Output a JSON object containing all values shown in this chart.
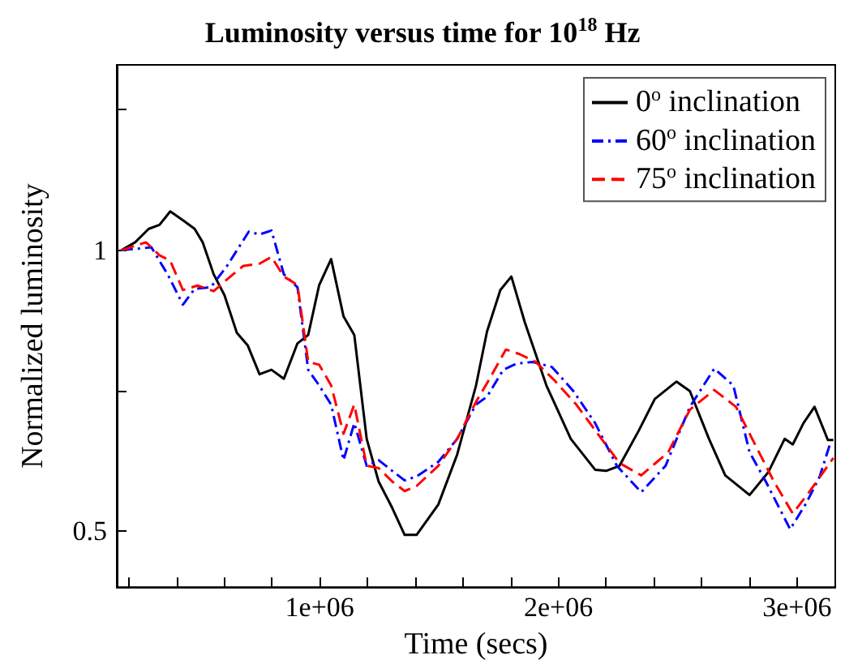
{
  "chart_data": {
    "type": "line",
    "title": "Luminosity versus time for 10$^{18}$ Hz",
    "xlabel": "Time (secs)",
    "ylabel": "Normalized luminosity",
    "xlim": [
      150000,
      3160000
    ],
    "ylim": [
      0.4,
      1.33
    ],
    "xticks": [
      {
        "value": 200000,
        "label": null
      },
      {
        "value": 400000,
        "label": null
      },
      {
        "value": 600000,
        "label": null
      },
      {
        "value": 800000,
        "label": null
      },
      {
        "value": 1000000,
        "label": "1e+06"
      },
      {
        "value": 1200000,
        "label": null
      },
      {
        "value": 1400000,
        "label": null
      },
      {
        "value": 1600000,
        "label": null
      },
      {
        "value": 1800000,
        "label": null
      },
      {
        "value": 2000000,
        "label": "2e+06"
      },
      {
        "value": 2200000,
        "label": null
      },
      {
        "value": 2400000,
        "label": null
      },
      {
        "value": 2600000,
        "label": null
      },
      {
        "value": 2800000,
        "label": null
      },
      {
        "value": 3000000,
        "label": "3e+06"
      }
    ],
    "yticks": [
      {
        "value": 0.5,
        "label": "0.5"
      },
      {
        "value": 0.75,
        "label": null
      },
      {
        "value": 1,
        "label": "1"
      },
      {
        "value": 1.25,
        "label": null
      }
    ],
    "grid": false,
    "legend": "top right",
    "marker": "none",
    "series": [
      {
        "name": "0$^{o}$ inclination",
        "color": "#000000",
        "line_style": "solid",
        "x": [
          170000,
          227000,
          284000,
          329000,
          374000,
          431000,
          476000,
          510000,
          556000,
          601000,
          653000,
          699000,
          748000,
          798000,
          850000,
          907000,
          952000,
          998000,
          1048000,
          1100000,
          1145000,
          1197000,
          1247000,
          1304000,
          1356000,
          1406000,
          1497000,
          1576000,
          1655000,
          1701000,
          1757000,
          1803000,
          1859000,
          1950000,
          2052000,
          2154000,
          2200000,
          2256000,
          2336000,
          2404000,
          2495000,
          2551000,
          2631000,
          2699000,
          2801000,
          2880000,
          2948000,
          2982000,
          3027000,
          3073000,
          3129000,
          3152000
        ],
        "values": [
          1.0,
          1.014,
          1.038,
          1.045,
          1.069,
          1.052,
          1.038,
          1.014,
          0.957,
          0.92,
          0.853,
          0.83,
          0.779,
          0.787,
          0.771,
          0.834,
          0.849,
          0.938,
          0.984,
          0.882,
          0.849,
          0.664,
          0.588,
          0.541,
          0.493,
          0.493,
          0.547,
          0.636,
          0.759,
          0.855,
          0.929,
          0.953,
          0.872,
          0.759,
          0.664,
          0.609,
          0.607,
          0.616,
          0.678,
          0.735,
          0.766,
          0.749,
          0.664,
          0.599,
          0.564,
          0.605,
          0.664,
          0.654,
          0.692,
          0.721,
          0.662,
          0.662
        ]
      },
      {
        "name": "60$^{o}$ inclination",
        "color": "#0000ff",
        "line_style": "dashdot",
        "x": [
          170000,
          295000,
          363000,
          427000,
          476000,
          544000,
          612000,
          703000,
          748000,
          798000,
          850000,
          907000,
          952000,
          998000,
          1048000,
          1100000,
          1145000,
          1197000,
          1247000,
          1304000,
          1356000,
          1406000,
          1497000,
          1576000,
          1655000,
          1701000,
          1769000,
          1825000,
          1893000,
          1973000,
          2063000,
          2154000,
          2245000,
          2347000,
          2449000,
          2551000,
          2653000,
          2733000,
          2801000,
          2869000,
          2971000,
          3039000,
          3095000,
          3141000
        ],
        "values": [
          1.0,
          1.005,
          0.957,
          0.903,
          0.931,
          0.934,
          0.972,
          1.033,
          1.028,
          1.035,
          0.957,
          0.934,
          0.787,
          0.759,
          0.725,
          0.626,
          0.692,
          0.616,
          0.626,
          0.607,
          0.59,
          0.597,
          0.623,
          0.664,
          0.725,
          0.739,
          0.787,
          0.798,
          0.801,
          0.792,
          0.749,
          0.692,
          0.616,
          0.569,
          0.616,
          0.721,
          0.789,
          0.759,
          0.64,
          0.588,
          0.503,
          0.55,
          0.597,
          0.659
        ]
      },
      {
        "name": "75$^{o}$ inclination",
        "color": "#ff0000",
        "line_style": "dashed",
        "x": [
          170000,
          272000,
          329000,
          374000,
          427000,
          488000,
          556000,
          612000,
          680000,
          748000,
          798000,
          850000,
          907000,
          952000,
          998000,
          1048000,
          1100000,
          1145000,
          1197000,
          1247000,
          1304000,
          1356000,
          1406000,
          1497000,
          1576000,
          1655000,
          1701000,
          1780000,
          1837000,
          1905000,
          1984000,
          2075000,
          2165000,
          2256000,
          2347000,
          2460000,
          2551000,
          2653000,
          2744000,
          2812000,
          2903000,
          2982000,
          3050000,
          3129000,
          3152000
        ],
        "values": [
          1.0,
          1.014,
          0.991,
          0.981,
          0.929,
          0.937,
          0.927,
          0.948,
          0.972,
          0.976,
          0.988,
          0.953,
          0.938,
          0.801,
          0.796,
          0.759,
          0.673,
          0.725,
          0.616,
          0.612,
          0.588,
          0.571,
          0.58,
          0.616,
          0.664,
          0.73,
          0.763,
          0.823,
          0.815,
          0.801,
          0.768,
          0.725,
          0.673,
          0.621,
          0.599,
          0.64,
          0.716,
          0.751,
          0.721,
          0.664,
          0.588,
          0.531,
          0.569,
          0.616,
          0.63
        ]
      }
    ]
  }
}
